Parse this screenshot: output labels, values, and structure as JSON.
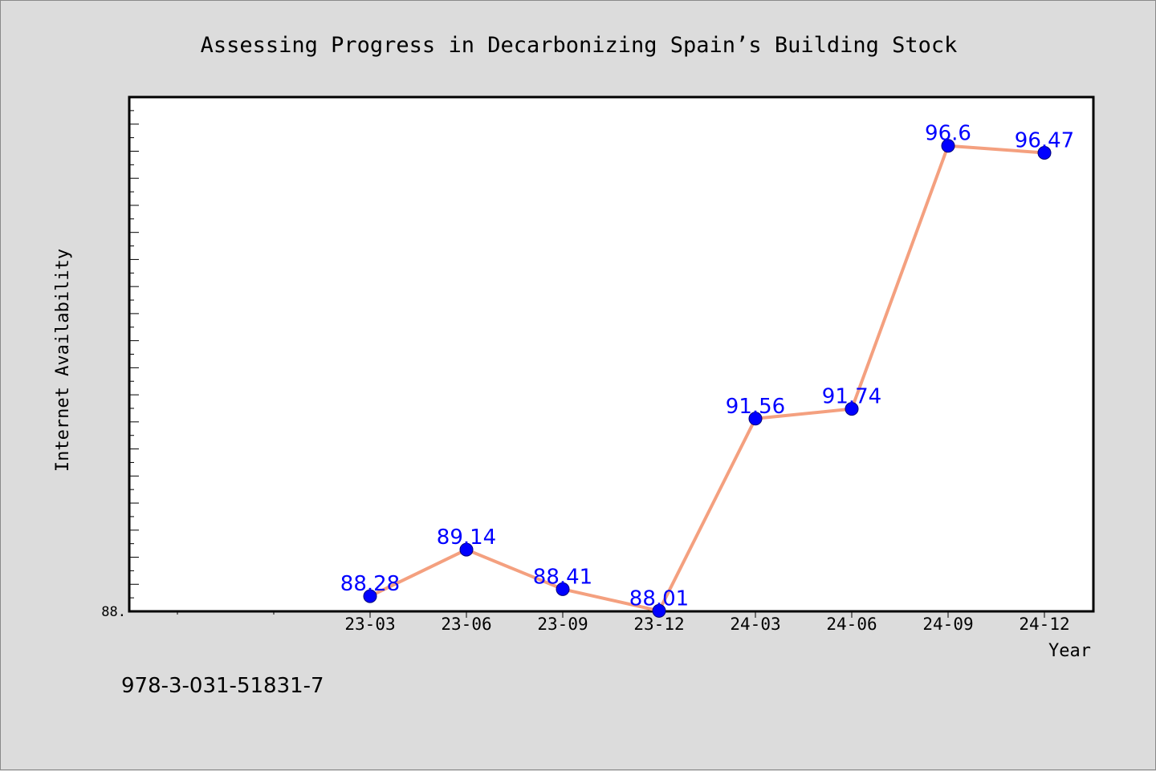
{
  "colors": {
    "background": "#dcdcdc",
    "plot_background": "#ffffff",
    "line": "#f4a07f",
    "marker": "#0000ff",
    "data_label": "#0000ff",
    "axis": "#000000"
  },
  "footer": {
    "isbn": "978-3-031-51831-7"
  },
  "chart_data": {
    "type": "line",
    "title": "Assessing Progress in Decarbonizing Spain’s Building Stock",
    "xlabel": "Year",
    "ylabel": "Internet Availability",
    "categories": [
      "23-03",
      "23-06",
      "23-09",
      "23-12",
      "24-03",
      "24-06",
      "24-09",
      "24-12"
    ],
    "series": [
      {
        "values": [
          88.28,
          89.14,
          88.41,
          88.01,
          91.56,
          91.74,
          96.6,
          96.47
        ]
      }
    ],
    "data_labels": [
      "88.28",
      "89.14",
      "88.41",
      "88.01",
      "91.56",
      "91.74",
      "96.6",
      "96.47"
    ],
    "ylim": [
      88.0,
      97.5
    ],
    "y_tick_labels": [
      "88."
    ],
    "grid": false,
    "legend": "none"
  }
}
